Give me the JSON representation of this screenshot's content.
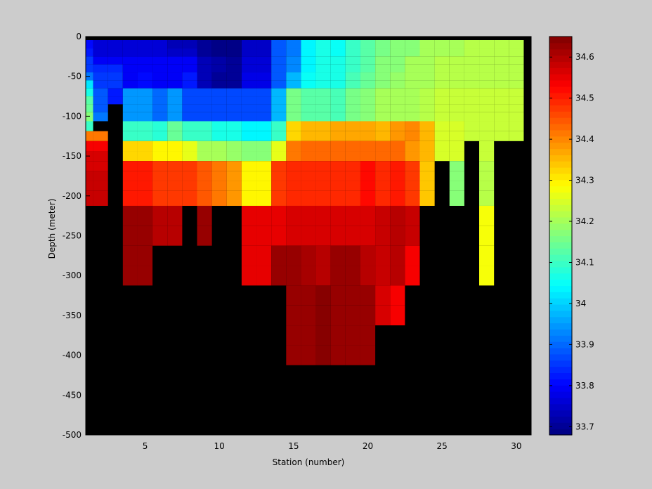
{
  "chart_data": {
    "type": "heatmap",
    "title": "",
    "xlabel": "Station (number)",
    "ylabel": "Depth (meter)",
    "xlim": [
      1,
      31
    ],
    "ylim": [
      -500,
      0
    ],
    "xticks": [
      5,
      10,
      15,
      20,
      25,
      30
    ],
    "yticks": [
      0,
      -50,
      -100,
      -150,
      -200,
      -250,
      -300,
      -350,
      -400,
      -450,
      -500
    ],
    "depth_levels": [
      -10,
      -20,
      -30,
      -40,
      -50,
      -60,
      -70,
      -80,
      -90,
      -100,
      -112.5,
      -125,
      -137.5,
      -150,
      -162.5,
      -175,
      -187.5,
      -200,
      -225,
      -250,
      -275,
      -300,
      -325,
      -350,
      -375,
      -400
    ],
    "stations": [
      1,
      2,
      3,
      4,
      5,
      6,
      7,
      8,
      9,
      10,
      11,
      12,
      13,
      14,
      15,
      16,
      17,
      18,
      19,
      20,
      21,
      22,
      23,
      24,
      25,
      26,
      27,
      28,
      29,
      30
    ],
    "salinity_psu": [
      [
        33.81,
        33.82,
        33.85,
        33.86,
        33.92,
        34.02,
        34.06,
        34.12,
        34.14,
        34.17,
        34.09,
        34.42,
        34.53,
        34.56,
        34.57,
        34.58,
        34.58,
        34.58,
        null,
        null,
        null,
        null,
        null,
        null,
        null,
        null
      ],
      [
        33.76,
        33.77,
        33.8,
        33.84,
        33.85,
        33.86,
        33.89,
        33.89,
        33.89,
        33.92,
        null,
        34.42,
        34.53,
        34.56,
        34.57,
        34.58,
        34.58,
        34.58,
        null,
        null,
        null,
        null,
        null,
        null,
        null,
        null
      ],
      [
        33.76,
        33.77,
        33.8,
        33.84,
        33.85,
        33.86,
        33.83,
        33.83,
        null,
        null,
        null,
        null,
        null,
        null,
        null,
        null,
        null,
        null,
        null,
        null,
        null,
        null,
        null,
        null,
        null,
        null
      ],
      [
        33.76,
        33.77,
        33.8,
        33.8,
        33.8,
        33.8,
        33.94,
        33.94,
        33.94,
        33.94,
        34.1,
        34.1,
        34.33,
        34.33,
        34.5,
        34.5,
        34.5,
        34.5,
        34.62,
        34.62,
        34.63,
        34.63,
        null,
        null,
        null,
        null
      ],
      [
        33.77,
        33.77,
        33.8,
        33.8,
        33.81,
        33.81,
        33.94,
        33.94,
        33.94,
        33.94,
        34.1,
        34.1,
        34.33,
        34.33,
        34.5,
        34.5,
        34.5,
        34.5,
        34.62,
        34.62,
        34.63,
        34.63,
        null,
        null,
        null,
        null
      ],
      [
        33.76,
        33.77,
        33.8,
        33.8,
        33.8,
        33.8,
        33.9,
        33.9,
        33.9,
        33.9,
        34.08,
        34.08,
        34.3,
        34.3,
        34.48,
        34.48,
        34.48,
        34.48,
        34.6,
        34.6,
        null,
        null,
        null,
        null,
        null,
        null
      ],
      [
        33.73,
        33.75,
        33.79,
        33.79,
        33.79,
        33.79,
        33.95,
        33.95,
        33.95,
        33.95,
        34.14,
        34.14,
        34.3,
        34.3,
        34.48,
        34.48,
        34.48,
        34.48,
        34.6,
        34.6,
        null,
        null,
        null,
        null,
        null,
        null
      ],
      [
        33.73,
        33.75,
        33.79,
        33.79,
        33.82,
        33.82,
        33.87,
        33.87,
        33.87,
        33.87,
        34.09,
        34.09,
        34.27,
        34.27,
        34.48,
        34.48,
        34.48,
        34.48,
        null,
        null,
        null,
        null,
        null,
        null,
        null,
        null
      ],
      [
        33.7,
        33.71,
        33.73,
        33.73,
        33.73,
        33.73,
        33.87,
        33.87,
        33.87,
        33.87,
        34.09,
        34.09,
        34.2,
        34.2,
        34.45,
        34.45,
        34.45,
        34.45,
        34.63,
        34.63,
        null,
        null,
        null,
        null,
        null,
        null
      ],
      [
        33.69,
        33.69,
        33.72,
        33.72,
        33.71,
        33.71,
        33.87,
        33.87,
        33.87,
        33.87,
        34.07,
        34.07,
        34.2,
        34.2,
        34.42,
        34.42,
        34.42,
        34.42,
        null,
        null,
        null,
        null,
        null,
        null,
        null,
        null
      ],
      [
        33.69,
        33.69,
        33.71,
        33.71,
        33.71,
        33.71,
        33.87,
        33.87,
        33.87,
        33.87,
        34.07,
        34.07,
        34.19,
        34.19,
        34.39,
        34.39,
        34.39,
        34.39,
        null,
        null,
        null,
        null,
        null,
        null,
        null,
        null
      ],
      [
        33.75,
        33.75,
        33.77,
        33.77,
        33.78,
        33.78,
        33.87,
        33.87,
        33.87,
        33.87,
        34.03,
        34.03,
        34.17,
        34.17,
        34.3,
        34.3,
        34.3,
        34.3,
        34.55,
        34.55,
        34.55,
        34.55,
        null,
        null,
        null,
        null
      ],
      [
        33.75,
        33.75,
        33.77,
        33.77,
        33.78,
        33.78,
        33.87,
        33.87,
        33.87,
        33.87,
        34.03,
        34.03,
        34.17,
        34.17,
        34.3,
        34.3,
        34.3,
        34.3,
        34.55,
        34.55,
        34.55,
        34.55,
        null,
        null,
        null,
        null
      ],
      [
        33.88,
        33.88,
        33.89,
        33.89,
        33.89,
        33.89,
        33.97,
        33.97,
        33.97,
        33.97,
        34.1,
        34.1,
        34.27,
        34.27,
        34.47,
        34.47,
        34.47,
        34.47,
        34.55,
        34.55,
        34.62,
        34.62,
        null,
        null,
        null,
        null
      ],
      [
        33.92,
        33.92,
        33.93,
        33.93,
        33.97,
        33.97,
        34.15,
        34.15,
        34.15,
        34.15,
        34.33,
        34.33,
        34.41,
        34.41,
        34.49,
        34.49,
        34.49,
        34.49,
        34.57,
        34.57,
        34.62,
        34.62,
        34.62,
        34.62,
        34.62,
        34.62
      ],
      [
        34.03,
        34.03,
        34.04,
        34.04,
        34.05,
        34.05,
        34.12,
        34.12,
        34.12,
        34.12,
        34.36,
        34.36,
        34.43,
        34.43,
        34.49,
        34.49,
        34.49,
        34.49,
        34.57,
        34.57,
        34.61,
        34.61,
        34.63,
        34.63,
        34.63,
        34.63
      ],
      [
        34.06,
        34.06,
        34.07,
        34.07,
        34.07,
        34.07,
        34.12,
        34.12,
        34.12,
        34.12,
        34.35,
        34.35,
        34.43,
        34.43,
        34.49,
        34.49,
        34.49,
        34.49,
        34.57,
        34.57,
        34.6,
        34.6,
        34.64,
        34.64,
        34.64,
        34.64
      ],
      [
        34.05,
        34.05,
        34.06,
        34.06,
        34.07,
        34.07,
        34.11,
        34.11,
        34.11,
        34.11,
        34.37,
        34.37,
        34.43,
        34.43,
        34.49,
        34.49,
        34.49,
        34.49,
        34.57,
        34.57,
        34.62,
        34.62,
        34.62,
        34.62,
        34.62,
        34.62
      ],
      [
        34.09,
        34.09,
        34.1,
        34.1,
        34.11,
        34.11,
        34.15,
        34.15,
        34.15,
        34.15,
        34.37,
        34.37,
        34.43,
        34.43,
        34.49,
        34.49,
        34.49,
        34.49,
        34.56,
        34.56,
        34.62,
        34.62,
        34.62,
        34.62,
        34.63,
        34.63
      ],
      [
        34.12,
        34.12,
        34.13,
        34.13,
        34.14,
        34.14,
        34.17,
        34.17,
        34.17,
        34.17,
        34.37,
        34.37,
        34.43,
        34.43,
        34.52,
        34.52,
        34.52,
        34.52,
        34.56,
        34.56,
        34.59,
        34.59,
        34.62,
        34.62,
        34.62,
        34.62
      ],
      [
        34.15,
        34.15,
        34.17,
        34.17,
        34.17,
        34.17,
        34.2,
        34.2,
        34.2,
        34.2,
        34.35,
        34.35,
        34.43,
        34.43,
        34.49,
        34.49,
        34.49,
        34.49,
        34.58,
        34.58,
        34.58,
        34.58,
        34.57,
        34.57,
        null,
        null
      ],
      [
        34.17,
        34.17,
        34.17,
        34.17,
        34.19,
        34.19,
        34.2,
        34.2,
        34.2,
        34.2,
        34.38,
        34.38,
        34.43,
        34.43,
        34.51,
        34.51,
        34.51,
        34.51,
        34.6,
        34.6,
        34.6,
        34.6,
        34.54,
        34.54,
        null,
        null
      ],
      [
        34.18,
        34.18,
        34.2,
        34.2,
        34.2,
        34.2,
        34.2,
        34.2,
        34.2,
        34.2,
        34.4,
        34.4,
        34.39,
        34.39,
        34.47,
        34.47,
        34.47,
        34.47,
        34.58,
        34.58,
        34.54,
        34.54,
        null,
        null,
        null,
        null
      ],
      [
        34.2,
        34.2,
        34.21,
        34.21,
        34.21,
        34.21,
        34.22,
        34.22,
        34.22,
        34.22,
        34.35,
        34.35,
        34.35,
        34.35,
        34.34,
        34.34,
        34.34,
        34.34,
        null,
        null,
        null,
        null,
        null,
        null,
        null,
        null
      ],
      [
        34.21,
        34.21,
        34.22,
        34.22,
        34.22,
        34.22,
        34.23,
        34.23,
        34.23,
        34.23,
        34.25,
        34.25,
        34.25,
        34.25,
        null,
        null,
        null,
        null,
        null,
        null,
        null,
        null,
        null,
        null,
        null,
        null
      ],
      [
        34.21,
        34.21,
        34.22,
        34.22,
        34.22,
        34.22,
        34.23,
        34.23,
        34.23,
        34.23,
        34.25,
        34.25,
        34.25,
        34.25,
        34.18,
        34.18,
        34.18,
        34.18,
        null,
        null,
        null,
        null,
        null,
        null,
        null,
        null
      ],
      [
        34.22,
        34.22,
        34.22,
        34.22,
        34.22,
        34.22,
        34.23,
        34.23,
        34.23,
        34.23,
        34.24,
        34.24,
        null,
        null,
        null,
        null,
        null,
        null,
        null,
        null,
        null,
        null,
        null,
        null,
        null,
        null
      ],
      [
        34.22,
        34.22,
        34.22,
        34.22,
        34.22,
        34.22,
        34.23,
        34.23,
        34.23,
        34.23,
        34.24,
        34.24,
        34.24,
        34.24,
        34.22,
        34.22,
        34.22,
        34.22,
        34.28,
        34.28,
        34.28,
        34.28,
        null,
        null,
        null,
        null
      ],
      [
        34.22,
        34.22,
        34.22,
        34.22,
        34.22,
        34.22,
        34.23,
        34.23,
        34.23,
        34.23,
        34.24,
        34.24,
        null,
        null,
        null,
        null,
        null,
        null,
        null,
        null,
        null,
        null,
        null,
        null,
        null,
        null
      ],
      [
        34.22,
        34.22,
        34.22,
        34.22,
        34.22,
        34.22,
        34.23,
        34.23,
        34.23,
        34.23,
        34.24,
        34.24,
        null,
        null,
        null,
        null,
        null,
        null,
        null,
        null,
        null,
        null,
        null,
        null,
        null,
        null
      ]
    ],
    "no_data_color": "#000000",
    "colormap": "jet",
    "clim": [
      33.68,
      34.65
    ],
    "colorbar": {
      "ticks": [
        33.7,
        33.8,
        33.9,
        34,
        34.1,
        34.2,
        34.3,
        34.4,
        34.5,
        34.6
      ],
      "labels": [
        "33.7",
        "33.8",
        "33.9",
        "34",
        "34.1",
        "34.2",
        "34.3",
        "34.4",
        "34.5",
        "34.6"
      ],
      "levels": 64,
      "placement": "right"
    },
    "grid": false
  }
}
